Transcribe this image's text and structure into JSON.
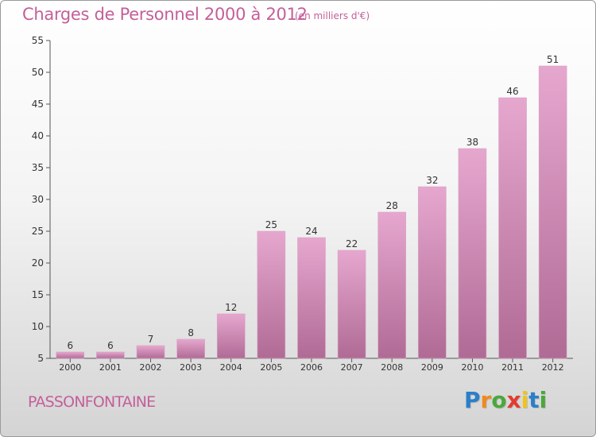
{
  "header": {
    "title": "Charges de Personnel 2000 à 2012",
    "subtitle": "(en milliers d'€)"
  },
  "footer": {
    "city": "PASSONFONTAINE",
    "logo_text": "Proxiti",
    "logo_letters": [
      {
        "char": "P",
        "color": "#2a7fc9"
      },
      {
        "char": "r",
        "color": "#f08a1c"
      },
      {
        "char": "o",
        "color": "#4aa83a"
      },
      {
        "char": "x",
        "color": "#e23b2e"
      },
      {
        "char": "i",
        "color": "#f2c318"
      },
      {
        "char": "t",
        "color": "#2a7fc9"
      },
      {
        "char": "i",
        "color": "#4aa83a"
      }
    ]
  },
  "chart_data": {
    "type": "bar",
    "title": "Charges de Personnel 2000 à 2012",
    "subtitle": "(en milliers d'€)",
    "categories": [
      "2000",
      "2001",
      "2002",
      "2003",
      "2004",
      "2005",
      "2006",
      "2007",
      "2008",
      "2009",
      "2010",
      "2011",
      "2012"
    ],
    "values": [
      6,
      6,
      7,
      8,
      12,
      25,
      24,
      22,
      28,
      32,
      38,
      46,
      51
    ],
    "ylim": [
      5,
      55
    ],
    "yticks": [
      5,
      10,
      15,
      20,
      25,
      30,
      35,
      40,
      45,
      50,
      55
    ],
    "xlabel": "",
    "ylabel": "",
    "grid": false,
    "bar_color_top": "#e6a7cf",
    "bar_color_bottom": "#b06b95",
    "text_color": "#c45f9a"
  }
}
